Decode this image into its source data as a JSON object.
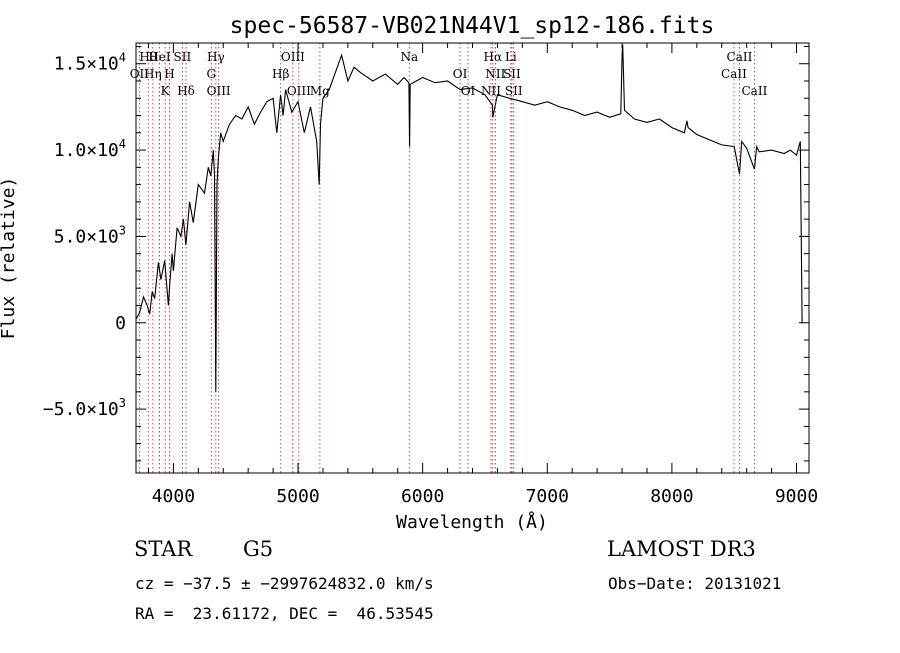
{
  "chart_data": {
    "type": "line",
    "title": "spec-56587-VB021N44V1_sp12-186.fits",
    "xlabel": "Wavelength (Å)",
    "ylabel": "Flux (relative)",
    "xlim": [
      3700,
      9100
    ],
    "ylim": [
      -8700,
      16200
    ],
    "x_ticks": [
      {
        "v": 4000,
        "label": "4000"
      },
      {
        "v": 5000,
        "label": "5000"
      },
      {
        "v": 6000,
        "label": "6000"
      },
      {
        "v": 7000,
        "label": "7000"
      },
      {
        "v": 8000,
        "label": "8000"
      },
      {
        "v": 9000,
        "label": "9000"
      }
    ],
    "y_ticks": [
      {
        "v": 15000,
        "mant": "1.5×10",
        "exp": "4"
      },
      {
        "v": 10000,
        "mant": "1.0×10",
        "exp": "4"
      },
      {
        "v": 5000,
        "mant": "5.0×10",
        "exp": "3"
      },
      {
        "v": 0,
        "mant": "0",
        "exp": ""
      },
      {
        "v": -5000,
        "mant": "−5.0×10",
        "exp": "3"
      }
    ],
    "series": [
      {
        "name": "flux",
        "x": [
          3700,
          3730,
          3760,
          3790,
          3810,
          3830,
          3850,
          3880,
          3900,
          3930,
          3960,
          3970,
          3990,
          4000,
          4030,
          4060,
          4080,
          4100,
          4130,
          4160,
          4200,
          4250,
          4280,
          4300,
          4320,
          4330,
          4340,
          4350,
          4360,
          4380,
          4400,
          4450,
          4500,
          4550,
          4600,
          4650,
          4700,
          4750,
          4800,
          4830,
          4860,
          4880,
          4900,
          4950,
          5000,
          5050,
          5100,
          5150,
          5170,
          5180,
          5200,
          5250,
          5300,
          5350,
          5400,
          5450,
          5500,
          5600,
          5700,
          5800,
          5850,
          5890,
          5895,
          5900,
          5950,
          6000,
          6100,
          6200,
          6300,
          6400,
          6500,
          6560,
          6563,
          6600,
          6700,
          6800,
          6900,
          7000,
          7100,
          7200,
          7300,
          7400,
          7500,
          7590,
          7600,
          7605,
          7620,
          7700,
          7800,
          7900,
          8000,
          8100,
          8120,
          8130,
          8200,
          8300,
          8400,
          8500,
          8542,
          8560,
          8600,
          8662,
          8680,
          8700,
          8800,
          8900,
          8950,
          9000,
          9030,
          9045,
          9050
        ],
        "y": [
          200,
          600,
          1500,
          1000,
          500,
          1800,
          1400,
          3500,
          2500,
          3600,
          1000,
          2200,
          4000,
          3000,
          5500,
          5000,
          6000,
          4500,
          7000,
          5800,
          8000,
          7500,
          9000,
          8500,
          10000,
          8500,
          -4000,
          8000,
          9500,
          11000,
          10500,
          11500,
          12000,
          11800,
          12500,
          11500,
          12200,
          12800,
          13000,
          11000,
          13200,
          12000,
          13500,
          12200,
          12800,
          11000,
          12500,
          10500,
          8000,
          11500,
          13000,
          13500,
          14500,
          15500,
          14000,
          14800,
          14500,
          14000,
          14400,
          13800,
          14200,
          13900,
          10200,
          13800,
          14000,
          14200,
          13900,
          14000,
          13500,
          13600,
          13200,
          12600,
          11900,
          13200,
          13000,
          12800,
          12600,
          12800,
          12500,
          12300,
          12000,
          12200,
          11900,
          12100,
          15500,
          16100,
          12300,
          11800,
          11600,
          11800,
          11300,
          11000,
          11700,
          11300,
          10900,
          10600,
          10300,
          10200,
          8600,
          10500,
          10100,
          8900,
          10200,
          9900,
          10000,
          9800,
          10000,
          9700,
          10500,
          0,
          0
        ]
      }
    ],
    "lines": [
      {
        "name": "Hθ",
        "x": 3797.9
      },
      {
        "name": "OII",
        "x": 3727.1
      },
      {
        "name": "K",
        "x": 3933.7
      },
      {
        "name": "HeI",
        "x": 3888.6
      },
      {
        "name": "Hη",
        "x": 3835.4
      },
      {
        "name": "Hδ",
        "x": 4101.7
      },
      {
        "name": "SII",
        "x": 4072.3
      },
      {
        "name": "H",
        "x": 3968.5
      },
      {
        "name": "OIII",
        "x": 4363.2
      },
      {
        "name": "Hγ",
        "x": 4340.5
      },
      {
        "name": "G",
        "x": 4304.4
      },
      {
        "name": "OIII",
        "x": 5006.8
      },
      {
        "name": "OIII",
        "x": 4958.9
      },
      {
        "name": "Hβ",
        "x": 4861.3
      },
      {
        "name": "Mg",
        "x": 5175.4
      },
      {
        "name": "Na",
        "x": 5892.9
      },
      {
        "name": "OI",
        "x": 6300.3
      },
      {
        "name": "OI",
        "x": 6363.8
      },
      {
        "name": "Hα",
        "x": 6562.8
      },
      {
        "name": "SII",
        "x": 6716.4
      },
      {
        "name": "NII",
        "x": 6548.1
      },
      {
        "name": "Li",
        "x": 6707.8
      },
      {
        "name": "NII",
        "x": 6583.4
      },
      {
        "name": "SII",
        "x": 6730.8
      },
      {
        "name": "CaII",
        "x": 8542.1
      },
      {
        "name": "CaII",
        "x": 8498.0
      },
      {
        "name": "CaII",
        "x": 8662.1
      }
    ]
  },
  "info": {
    "object_type": "STAR",
    "subclass": "G5",
    "survey": "LAMOST DR3",
    "cz": "cz = −37.5 ± −2997624832.0 km/s",
    "obs_date": "Obs−Date: 20131021",
    "radec": "RA =  23.61172, DEC =  46.53545"
  }
}
